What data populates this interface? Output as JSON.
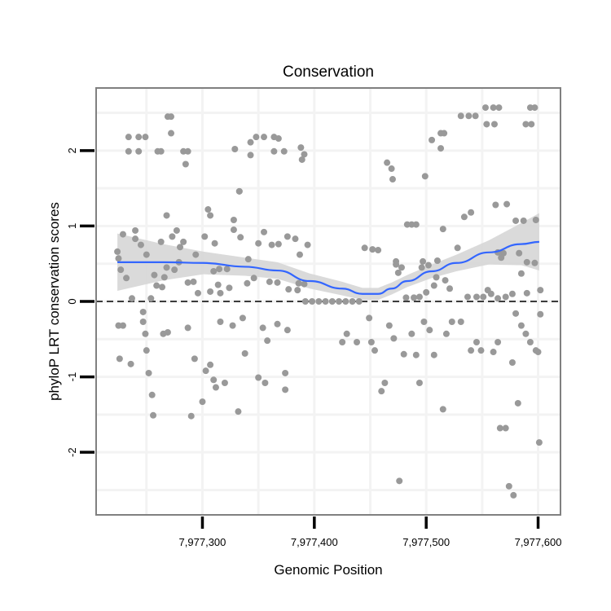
{
  "chart_data": {
    "type": "scatter",
    "title": "Conservation",
    "xlabel": "Genomic Position",
    "ylabel": "phyloP LRT conservation scores",
    "xlim": [
      7977205,
      7977620
    ],
    "ylim": [
      -2.83,
      2.83
    ],
    "x_ticks": [
      7977300,
      7977400,
      7977500,
      7977600
    ],
    "x_tick_labels": [
      "7,977,300",
      "7,977,400",
      "7,977,500",
      "7,977,600"
    ],
    "x_minor_grid": [
      7977250,
      7977350,
      7977450,
      7977550
    ],
    "y_ticks": [
      -2,
      -1,
      0,
      1,
      2
    ],
    "y_tick_labels": [
      "-2",
      "-1",
      "0",
      "1",
      "2"
    ],
    "y_minor_grid": [
      -2.5,
      -1.5,
      -0.5,
      0.5,
      1.5,
      2.5
    ],
    "grid": true,
    "reference_line": {
      "y": 0,
      "style": "dashed"
    },
    "colors": {
      "points": "#999999",
      "smooth": "#3366FF",
      "band": "#d4d4d4",
      "border": "#808080"
    },
    "points": [
      [
        7977234,
        2.18
      ],
      [
        7977243,
        2.18
      ],
      [
        7977249,
        2.18
      ],
      [
        7977234,
        1.99
      ],
      [
        7977243,
        1.99
      ],
      [
        7977260,
        1.99
      ],
      [
        7977263,
        1.99
      ],
      [
        7977269,
        2.45
      ],
      [
        7977272,
        2.45
      ],
      [
        7977272,
        2.23
      ],
      [
        7977283,
        1.99
      ],
      [
        7977287,
        1.99
      ],
      [
        7977285,
        1.82
      ],
      [
        7977329,
        2.02
      ],
      [
        7977333,
        1.46
      ],
      [
        7977307,
        1.14
      ],
      [
        7977348,
        2.18
      ],
      [
        7977343,
        2.11
      ],
      [
        7977343,
        1.94
      ],
      [
        7977355,
        2.18
      ],
      [
        7977364,
        2.18
      ],
      [
        7977368,
        2.16
      ],
      [
        7977364,
        1.99
      ],
      [
        7977373,
        1.99
      ],
      [
        7977388,
        2.04
      ],
      [
        7977391,
        1.95
      ],
      [
        7977389,
        1.88
      ],
      [
        7977465,
        1.84
      ],
      [
        7977469,
        1.76
      ],
      [
        7977470,
        1.62
      ],
      [
        7977499,
        1.66
      ],
      [
        7977505,
        2.14
      ],
      [
        7977513,
        2.23
      ],
      [
        7977516,
        2.23
      ],
      [
        7977513,
        2.03
      ],
      [
        7977531,
        2.46
      ],
      [
        7977538,
        2.46
      ],
      [
        7977544,
        2.46
      ],
      [
        7977553,
        2.57
      ],
      [
        7977560,
        2.57
      ],
      [
        7977565,
        2.57
      ],
      [
        7977554,
        2.35
      ],
      [
        7977561,
        2.35
      ],
      [
        7977593,
        2.57
      ],
      [
        7977597,
        2.57
      ],
      [
        7977589,
        2.35
      ],
      [
        7977594,
        2.35
      ],
      [
        7977229,
        0.89
      ],
      [
        7977240,
        0.94
      ],
      [
        7977240,
        0.83
      ],
      [
        7977245,
        0.75
      ],
      [
        7977224,
        0.66
      ],
      [
        7977225,
        0.57
      ],
      [
        7977250,
        0.62
      ],
      [
        7977263,
        0.79
      ],
      [
        7977268,
        1.14
      ],
      [
        7977273,
        0.86
      ],
      [
        7977277,
        0.94
      ],
      [
        7977283,
        0.79
      ],
      [
        7977280,
        0.72
      ],
      [
        7977294,
        0.62
      ],
      [
        7977305,
        1.22
      ],
      [
        7977302,
        0.86
      ],
      [
        7977311,
        0.77
      ],
      [
        7977328,
        1.08
      ],
      [
        7977328,
        0.95
      ],
      [
        7977334,
        0.85
      ],
      [
        7977333,
        1.46
      ],
      [
        7977341,
        0.56
      ],
      [
        7977350,
        0.77
      ],
      [
        7977355,
        0.92
      ],
      [
        7977362,
        0.75
      ],
      [
        7977368,
        0.76
      ],
      [
        7977376,
        0.86
      ],
      [
        7977383,
        0.83
      ],
      [
        7977394,
        0.75
      ],
      [
        7977387,
        0.62
      ],
      [
        7977227,
        0.42
      ],
      [
        7977232,
        0.31
      ],
      [
        7977257,
        0.35
      ],
      [
        7977266,
        0.32
      ],
      [
        7977268,
        0.45
      ],
      [
        7977275,
        0.42
      ],
      [
        7977279,
        0.52
      ],
      [
        7977259,
        0.21
      ],
      [
        7977264,
        0.19
      ],
      [
        7977287,
        0.25
      ],
      [
        7977292,
        0.26
      ],
      [
        7977310,
        0.4
      ],
      [
        7977315,
        0.43
      ],
      [
        7977322,
        0.43
      ],
      [
        7977314,
        0.22
      ],
      [
        7977324,
        0.18
      ],
      [
        7977296,
        0.11
      ],
      [
        7977307,
        0.13
      ],
      [
        7977316,
        0.11
      ],
      [
        7977340,
        0.24
      ],
      [
        7977346,
        0.31
      ],
      [
        7977360,
        0.26
      ],
      [
        7977367,
        0.25
      ],
      [
        7977377,
        0.16
      ],
      [
        7977385,
        0.15
      ],
      [
        7977386,
        0.24
      ],
      [
        7977391,
        0.23
      ],
      [
        7977237,
        0.04
      ],
      [
        7977254,
        0.04
      ],
      [
        7977392,
        0.0
      ],
      [
        7977398,
        0.0
      ],
      [
        7977404,
        0.0
      ],
      [
        7977410,
        0.0
      ],
      [
        7977416,
        0.0
      ],
      [
        7977422,
        0.0
      ],
      [
        7977428,
        0.0
      ],
      [
        7977434,
        0.0
      ],
      [
        7977440,
        0.0
      ],
      [
        7977445,
        0.71
      ],
      [
        7977452,
        0.69
      ],
      [
        7977457,
        0.68
      ],
      [
        7977562,
        1.28
      ],
      [
        7977572,
        1.29
      ],
      [
        7977540,
        1.18
      ],
      [
        7977534,
        1.12
      ],
      [
        7977580,
        1.07
      ],
      [
        7977587,
        1.07
      ],
      [
        7977598,
        1.08
      ],
      [
        7977515,
        0.96
      ],
      [
        7977487,
        1.02
      ],
      [
        7977483,
        1.02
      ],
      [
        7977491,
        1.02
      ],
      [
        7977528,
        0.71
      ],
      [
        7977564,
        0.65
      ],
      [
        7977569,
        0.64
      ],
      [
        7977567,
        0.58
      ],
      [
        7977583,
        0.64
      ],
      [
        7977590,
        0.52
      ],
      [
        7977597,
        0.51
      ],
      [
        7977585,
        0.37
      ],
      [
        7977473,
        0.53
      ],
      [
        7977473,
        0.49
      ],
      [
        7977478,
        0.45
      ],
      [
        7977475,
        0.38
      ],
      [
        7977497,
        0.53
      ],
      [
        7977496,
        0.45
      ],
      [
        7977502,
        0.48
      ],
      [
        7977510,
        0.54
      ],
      [
        7977517,
        0.28
      ],
      [
        7977509,
        0.32
      ],
      [
        7977507,
        0.21
      ],
      [
        7977521,
        0.17
      ],
      [
        7977500,
        0.12
      ],
      [
        7977482,
        0.05
      ],
      [
        7977489,
        0.05
      ],
      [
        7977494,
        0.06
      ],
      [
        7977537,
        0.06
      ],
      [
        7977545,
        0.06
      ],
      [
        7977551,
        0.06
      ],
      [
        7977555,
        0.15
      ],
      [
        7977558,
        0.1
      ],
      [
        7977564,
        0.04
      ],
      [
        7977571,
        0.06
      ],
      [
        7977577,
        0.1
      ],
      [
        7977590,
        0.11
      ],
      [
        7977602,
        0.15
      ],
      [
        7977225,
        -0.32
      ],
      [
        7977229,
        -0.32
      ],
      [
        7977226,
        -0.76
      ],
      [
        7977236,
        -0.83
      ],
      [
        7977247,
        -0.14
      ],
      [
        7977247,
        -0.27
      ],
      [
        7977249,
        -0.43
      ],
      [
        7977250,
        -0.65
      ],
      [
        7977252,
        -0.95
      ],
      [
        7977255,
        -1.24
      ],
      [
        7977256,
        -1.51
      ],
      [
        7977265,
        -0.43
      ],
      [
        7977269,
        -0.41
      ],
      [
        7977287,
        -0.35
      ],
      [
        7977293,
        -0.76
      ],
      [
        7977300,
        -1.33
      ],
      [
        7977303,
        -0.92
      ],
      [
        7977307,
        -0.84
      ],
      [
        7977310,
        -1.04
      ],
      [
        7977312,
        -1.14
      ],
      [
        7977320,
        -1.08
      ],
      [
        7977290,
        -1.52
      ],
      [
        7977316,
        -0.27
      ],
      [
        7977327,
        -0.32
      ],
      [
        7977332,
        -1.46
      ],
      [
        7977338,
        -0.69
      ],
      [
        7977336,
        -0.22
      ],
      [
        7977350,
        -1.01
      ],
      [
        7977356,
        -1.08
      ],
      [
        7977358,
        -0.52
      ],
      [
        7977354,
        -0.35
      ],
      [
        7977374,
        -1.17
      ],
      [
        7977374,
        -0.95
      ],
      [
        7977376,
        -0.38
      ],
      [
        7977367,
        -0.3
      ],
      [
        7977425,
        -0.54
      ],
      [
        7977429,
        -0.43
      ],
      [
        7977438,
        -0.54
      ],
      [
        7977449,
        -0.22
      ],
      [
        7977451,
        -0.54
      ],
      [
        7977454,
        -0.65
      ],
      [
        7977460,
        -1.19
      ],
      [
        7977463,
        -1.08
      ],
      [
        7977467,
        -0.32
      ],
      [
        7977471,
        -0.49
      ],
      [
        7977476,
        -2.38
      ],
      [
        7977480,
        -0.7
      ],
      [
        7977487,
        -0.43
      ],
      [
        7977491,
        -0.71
      ],
      [
        7977494,
        -1.08
      ],
      [
        7977498,
        -0.27
      ],
      [
        7977503,
        -0.38
      ],
      [
        7977507,
        -0.71
      ],
      [
        7977515,
        -1.43
      ],
      [
        7977518,
        -0.43
      ],
      [
        7977523,
        -0.27
      ],
      [
        7977531,
        -0.27
      ],
      [
        7977540,
        -0.65
      ],
      [
        7977545,
        -0.54
      ],
      [
        7977549,
        -0.65
      ],
      [
        7977560,
        -0.67
      ],
      [
        7977564,
        -0.54
      ],
      [
        7977566,
        -1.68
      ],
      [
        7977571,
        -1.68
      ],
      [
        7977574,
        -2.45
      ],
      [
        7977578,
        -2.57
      ],
      [
        7977582,
        -1.35
      ],
      [
        7977577,
        -0.81
      ],
      [
        7977580,
        -0.16
      ],
      [
        7977585,
        -0.32
      ],
      [
        7977589,
        -0.43
      ],
      [
        7977593,
        -0.54
      ],
      [
        7977598,
        -0.65
      ],
      [
        7977600,
        -0.67
      ],
      [
        7977601,
        -1.87
      ],
      [
        7977602,
        -0.17
      ]
    ],
    "smooth": {
      "x": [
        7977224,
        7977265,
        7977301,
        7977338,
        7977367,
        7977396,
        7977425,
        7977443,
        7977457,
        7977469,
        7977483,
        7977505,
        7977527,
        7977556,
        7977585,
        7977601
      ],
      "y": [
        0.52,
        0.52,
        0.51,
        0.46,
        0.41,
        0.27,
        0.17,
        0.1,
        0.1,
        0.17,
        0.27,
        0.4,
        0.51,
        0.65,
        0.76,
        0.79
      ],
      "se": [
        0.38,
        0.24,
        0.15,
        0.12,
        0.11,
        0.1,
        0.09,
        0.08,
        0.08,
        0.08,
        0.08,
        0.09,
        0.11,
        0.16,
        0.28,
        0.38
      ]
    }
  }
}
